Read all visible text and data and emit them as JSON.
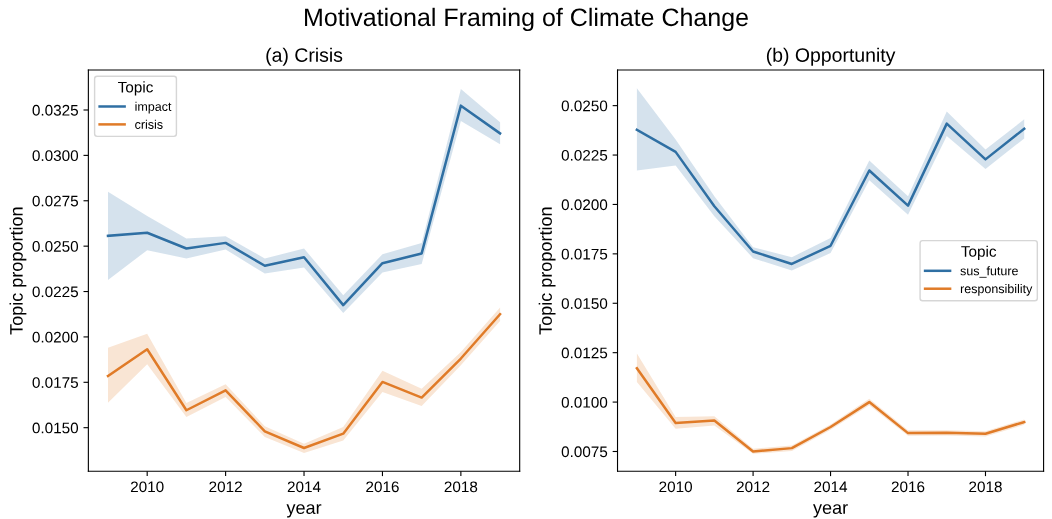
{
  "chart_data": [
    {
      "type": "line",
      "annotations": [
        "Motivational Framing of Climate Change"
      ],
      "title": "(a) Crisis",
      "xlabel": "year",
      "ylabel": "Topic proportion",
      "legend_title": "Topic",
      "legend": "top left",
      "grid": false,
      "x": [
        2009,
        2010,
        2011,
        2012,
        2013,
        2014,
        2015,
        2016,
        2017,
        2018,
        2019
      ],
      "xlim": [
        2008.5,
        2019.5
      ],
      "xticks": [
        2010,
        2012,
        2014,
        2016,
        2018
      ],
      "ylim": [
        0.0126,
        0.0347
      ],
      "yticks": [
        {
          "value": 0.015,
          "label": "0.0150"
        },
        {
          "value": 0.0175,
          "label": "0.0175"
        },
        {
          "value": 0.02,
          "label": "0.0200"
        },
        {
          "value": 0.0225,
          "label": "0.0225"
        },
        {
          "value": 0.025,
          "label": "0.0250"
        },
        {
          "value": 0.0275,
          "label": "0.0275"
        },
        {
          "value": 0.03,
          "label": "0.0300"
        },
        {
          "value": 0.0325,
          "label": "0.0325"
        }
      ],
      "series": [
        {
          "name": "impact",
          "color": "#2f6fa3",
          "values": [
            0.02557,
            0.02574,
            0.02487,
            0.02518,
            0.02392,
            0.02439,
            0.02175,
            0.02406,
            0.0246,
            0.03274,
            0.03121
          ],
          "lower": [
            0.02313,
            0.02478,
            0.02432,
            0.02482,
            0.02349,
            0.02382,
            0.02132,
            0.02355,
            0.02401,
            0.03189,
            0.03061
          ],
          "upper": [
            0.028,
            0.02666,
            0.02542,
            0.02555,
            0.02432,
            0.02487,
            0.0223,
            0.02456,
            0.02518,
            0.03366,
            0.03182
          ]
        },
        {
          "name": "crisis",
          "color": "#e07b28",
          "values": [
            0.01785,
            0.01932,
            0.01596,
            0.01706,
            0.0148,
            0.01388,
            0.01467,
            0.01752,
            0.01666,
            0.01881,
            0.02125
          ],
          "lower": [
            0.01638,
            0.01849,
            0.01559,
            0.01669,
            0.01449,
            0.01361,
            0.0143,
            0.01697,
            0.0162,
            0.01844,
            0.02088
          ],
          "upper": [
            0.01941,
            0.02018,
            0.01636,
            0.01739,
            0.01508,
            0.01412,
            0.01504,
            0.01813,
            0.01715,
            0.01917,
            0.02162
          ]
        }
      ]
    },
    {
      "type": "line",
      "title": "(b) Opportunity",
      "xlabel": "year",
      "ylabel": "Topic proportion",
      "legend_title": "Topic",
      "legend": "right",
      "grid": false,
      "x": [
        2009,
        2010,
        2011,
        2012,
        2013,
        2014,
        2015,
        2016,
        2017,
        2018,
        2019
      ],
      "xlim": [
        2008.5,
        2019.5
      ],
      "xticks": [
        2010,
        2012,
        2014,
        2016,
        2018
      ],
      "ylim": [
        0.0065,
        0.0268
      ],
      "yticks": [
        {
          "value": 0.0075,
          "label": "0.0075"
        },
        {
          "value": 0.01,
          "label": "0.0100"
        },
        {
          "value": 0.0125,
          "label": "0.0125"
        },
        {
          "value": 0.015,
          "label": "0.0150"
        },
        {
          "value": 0.0175,
          "label": "0.0175"
        },
        {
          "value": 0.02,
          "label": "0.0200"
        },
        {
          "value": 0.0225,
          "label": "0.0225"
        },
        {
          "value": 0.025,
          "label": "0.0250"
        }
      ],
      "series": [
        {
          "name": "sus_future",
          "color": "#2f6fa3",
          "values": [
            0.02378,
            0.02266,
            0.01991,
            0.01762,
            0.01699,
            0.01791,
            0.02172,
            0.01994,
            0.02409,
            0.02228,
            0.02383
          ],
          "lower": [
            0.02172,
            0.02197,
            0.0194,
            0.01728,
            0.01666,
            0.01754,
            0.02123,
            0.01948,
            0.02346,
            0.0218,
            0.02334
          ],
          "upper": [
            0.02588,
            0.02329,
            0.02041,
            0.01784,
            0.01733,
            0.0183,
            0.02222,
            0.02041,
            0.0247,
            0.02278,
            0.02431
          ]
        },
        {
          "name": "responsibility",
          "color": "#e07b28",
          "values": [
            0.01171,
            0.00894,
            0.00907,
            0.0075,
            0.00767,
            0.00874,
            0.01,
            0.00843,
            0.00845,
            0.0084,
            0.00899
          ],
          "lower": [
            0.01102,
            0.00865,
            0.00882,
            0.00738,
            0.00753,
            0.0086,
            0.00984,
            0.0083,
            0.00831,
            0.00826,
            0.00885
          ],
          "upper": [
            0.01246,
            0.00924,
            0.00928,
            0.00764,
            0.0078,
            0.00887,
            0.01017,
            0.00857,
            0.00858,
            0.00853,
            0.00912
          ]
        }
      ]
    }
  ]
}
